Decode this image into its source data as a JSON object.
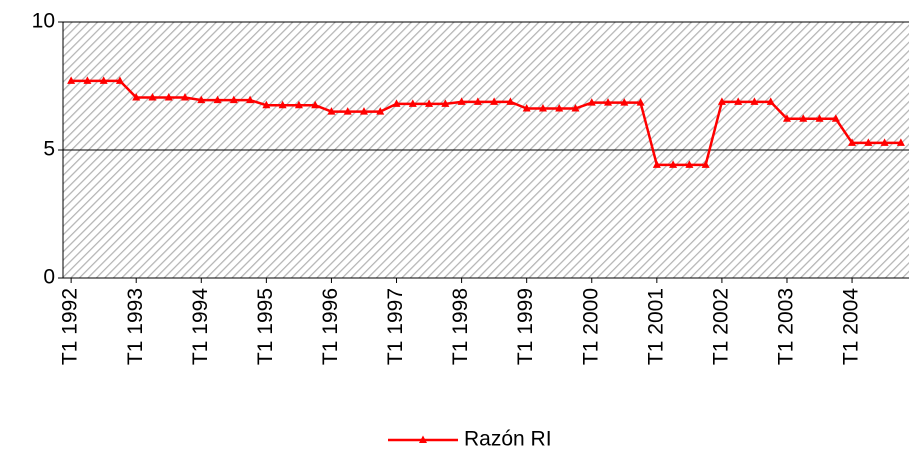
{
  "chart_data": {
    "type": "line",
    "categories": [
      "T1 1992",
      null,
      null,
      null,
      "T1 1993",
      null,
      null,
      null,
      "T1 1994",
      null,
      null,
      null,
      "T1 1995",
      null,
      null,
      null,
      "T1 1996",
      null,
      null,
      null,
      "T1 1997",
      null,
      null,
      null,
      "T1 1998",
      null,
      null,
      null,
      "T1 1999",
      null,
      null,
      null,
      "T1 2000",
      null,
      null,
      null,
      "T1 2001",
      null,
      null,
      null,
      "T1 2002",
      null,
      null,
      null,
      "T1 2003",
      null,
      null,
      null,
      "T1 2004",
      null,
      null,
      null
    ],
    "series": [
      {
        "name": "Razón RI",
        "color": "#ff0000",
        "values": [
          7.7,
          7.7,
          7.7,
          7.7,
          7.05,
          7.05,
          7.05,
          7.05,
          6.95,
          6.95,
          6.95,
          6.95,
          6.75,
          6.75,
          6.75,
          6.75,
          6.5,
          6.5,
          6.5,
          6.5,
          6.8,
          6.8,
          6.8,
          6.8,
          6.88,
          6.88,
          6.88,
          6.88,
          6.62,
          6.62,
          6.62,
          6.62,
          6.85,
          6.85,
          6.85,
          6.85,
          4.42,
          4.42,
          4.42,
          4.42,
          6.88,
          6.88,
          6.88,
          6.88,
          6.22,
          6.22,
          6.22,
          6.22,
          5.28,
          5.28,
          5.28,
          5.28
        ]
      }
    ],
    "ylim": [
      0,
      10
    ],
    "yticks": [
      0,
      5,
      10
    ],
    "grid": true,
    "legend": "bottom"
  }
}
